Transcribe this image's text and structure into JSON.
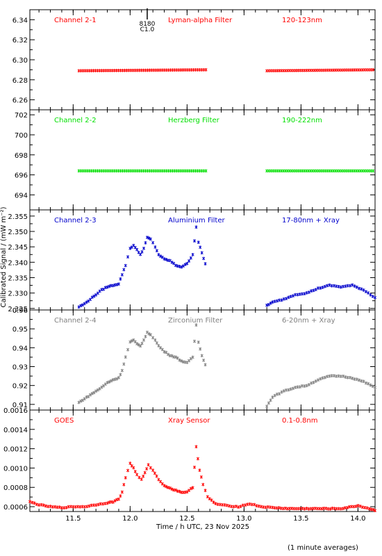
{
  "figure": {
    "ylabel": "Calibrated Signal / (mW m⁻²)",
    "xlabel": "Time / h UTC, 23 Nov 2025",
    "footnote": "(1 minute averages)",
    "marker_top": "8180",
    "marker_bottom": "C1.0",
    "marker_x": 12.15
  },
  "chart_data": [
    {
      "type": "scatter",
      "label_left": "Channel 2-1",
      "label_mid": "Lyman-alpha Filter",
      "label_right": "120-123nm",
      "color": "#ff0000",
      "xlim": [
        11.12,
        14.15
      ],
      "ylim": [
        6.25,
        6.35
      ],
      "yticks": [
        6.26,
        6.28,
        6.3,
        6.32,
        6.34
      ],
      "ytick_labels": [
        "6.26",
        "6.28",
        "6.30",
        "6.32",
        "6.34"
      ],
      "segments": [
        {
          "x": [
            11.55,
            12.68
          ],
          "y": [
            6.289,
            6.29
          ]
        },
        {
          "x": [
            13.2,
            14.15
          ],
          "y": [
            6.289,
            6.29
          ]
        }
      ]
    },
    {
      "type": "scatter",
      "label_left": "Channel 2-2",
      "label_mid": "Herzberg Filter",
      "label_right": "190-222nm",
      "color": "#00e000",
      "xlim": [
        11.12,
        14.15
      ],
      "ylim": [
        692.5,
        702.5
      ],
      "yticks": [
        694,
        696,
        698,
        700,
        702
      ],
      "ytick_labels": [
        "694",
        "696",
        "698",
        "700",
        "702"
      ],
      "segments": [
        {
          "x": [
            11.55,
            12.68
          ],
          "y": [
            696.4,
            696.4
          ]
        },
        {
          "x": [
            13.2,
            14.15
          ],
          "y": [
            696.4,
            696.4
          ]
        }
      ]
    },
    {
      "type": "scatter",
      "label_left": "Channel 2-3",
      "label_mid": "Aluminium Filter",
      "label_right": "17-80nm + Xray",
      "color": "#0000cc",
      "xlim": [
        11.12,
        14.15
      ],
      "ylim": [
        2.3245,
        2.357
      ],
      "yticks": [
        2.325,
        2.33,
        2.335,
        2.34,
        2.345,
        2.35,
        2.355
      ],
      "ytick_labels": [
        "2.325",
        "2.330",
        "2.335",
        "2.340",
        "2.345",
        "2.350",
        "2.355"
      ],
      "points": [
        [
          11.55,
          2.3255
        ],
        [
          11.6,
          2.3265
        ],
        [
          11.65,
          2.328
        ],
        [
          11.7,
          2.3295
        ],
        [
          11.75,
          2.331
        ],
        [
          11.8,
          2.332
        ],
        [
          11.85,
          2.3325
        ],
        [
          11.9,
          2.333
        ],
        [
          11.93,
          2.336
        ],
        [
          11.96,
          2.339
        ],
        [
          12.0,
          2.3445
        ],
        [
          12.03,
          2.3455
        ],
        [
          12.06,
          2.344
        ],
        [
          12.09,
          2.3425
        ],
        [
          12.12,
          2.3445
        ],
        [
          12.15,
          2.348
        ],
        [
          12.18,
          2.3475
        ],
        [
          12.22,
          2.345
        ],
        [
          12.25,
          2.3425
        ],
        [
          12.3,
          2.341
        ],
        [
          12.35,
          2.3405
        ],
        [
          12.4,
          2.339
        ],
        [
          12.45,
          2.3385
        ],
        [
          12.5,
          2.3395
        ],
        [
          12.55,
          2.3425
        ],
        [
          12.58,
          2.3515
        ],
        [
          12.6,
          2.3465
        ],
        [
          12.63,
          2.343
        ],
        [
          12.66,
          2.3395
        ],
        [
          13.2,
          2.326
        ],
        [
          13.25,
          2.327
        ],
        [
          13.35,
          2.328
        ],
        [
          13.45,
          2.3295
        ],
        [
          13.55,
          2.33
        ],
        [
          13.65,
          2.3315
        ],
        [
          13.75,
          2.3325
        ],
        [
          13.85,
          2.332
        ],
        [
          13.95,
          2.3325
        ],
        [
          14.05,
          2.331
        ],
        [
          14.15,
          2.3285
        ]
      ]
    },
    {
      "type": "scatter",
      "label_left": "Channel 2-4",
      "label_mid": "Zirconium Filter",
      "label_right": "6-20nm + Xray",
      "color": "#808080",
      "xlim": [
        11.12,
        14.15
      ],
      "ylim": [
        0.907,
        0.96
      ],
      "yticks": [
        0.91,
        0.92,
        0.93,
        0.94,
        0.95,
        0.96
      ],
      "ytick_labels": [
        "0.91",
        "0.92",
        "0.93",
        "0.94",
        "0.95",
        "0.96"
      ],
      "points": [
        [
          11.55,
          0.911
        ],
        [
          11.6,
          0.913
        ],
        [
          11.65,
          0.915
        ],
        [
          11.7,
          0.917
        ],
        [
          11.75,
          0.919
        ],
        [
          11.8,
          0.9215
        ],
        [
          11.85,
          0.923
        ],
        [
          11.9,
          0.924
        ],
        [
          11.93,
          0.928
        ],
        [
          11.96,
          0.935
        ],
        [
          12.0,
          0.943
        ],
        [
          12.03,
          0.944
        ],
        [
          12.06,
          0.942
        ],
        [
          12.09,
          0.941
        ],
        [
          12.12,
          0.944
        ],
        [
          12.15,
          0.948
        ],
        [
          12.18,
          0.947
        ],
        [
          12.22,
          0.944
        ],
        [
          12.25,
          0.941
        ],
        [
          12.3,
          0.938
        ],
        [
          12.35,
          0.936
        ],
        [
          12.4,
          0.935
        ],
        [
          12.45,
          0.933
        ],
        [
          12.5,
          0.932
        ],
        [
          12.55,
          0.935
        ],
        [
          12.58,
          0.952
        ],
        [
          12.6,
          0.943
        ],
        [
          12.63,
          0.936
        ],
        [
          12.66,
          0.931
        ],
        [
          13.2,
          0.909
        ],
        [
          13.25,
          0.914
        ],
        [
          13.35,
          0.917
        ],
        [
          13.45,
          0.919
        ],
        [
          13.55,
          0.92
        ],
        [
          13.65,
          0.923
        ],
        [
          13.75,
          0.925
        ],
        [
          13.85,
          0.925
        ],
        [
          13.95,
          0.924
        ],
        [
          14.05,
          0.922
        ],
        [
          14.15,
          0.919
        ]
      ]
    },
    {
      "type": "scatter",
      "label_left": "GOES",
      "label_mid": "Xray Sensor",
      "label_right": "0.1-0.8nm",
      "color": "#ff0000",
      "xlim": [
        11.12,
        14.15
      ],
      "ylim": [
        0.00055,
        0.0016
      ],
      "yticks": [
        0.0006,
        0.0008,
        0.001,
        0.0012,
        0.0014,
        0.0016
      ],
      "ytick_labels": [
        "0.0006",
        "0.0008",
        "0.0010",
        "0.0012",
        "0.0014",
        "0.0016"
      ],
      "points": [
        [
          11.12,
          0.00065
        ],
        [
          11.2,
          0.00062
        ],
        [
          11.3,
          0.0006
        ],
        [
          11.4,
          0.00059
        ],
        [
          11.5,
          0.0006
        ],
        [
          11.6,
          0.0006
        ],
        [
          11.7,
          0.00062
        ],
        [
          11.8,
          0.00064
        ],
        [
          11.85,
          0.00065
        ],
        [
          11.9,
          0.00068
        ],
        [
          11.93,
          0.00075
        ],
        [
          11.96,
          0.0009
        ],
        [
          12.0,
          0.00105
        ],
        [
          12.03,
          0.001
        ],
        [
          12.06,
          0.00093
        ],
        [
          12.1,
          0.00088
        ],
        [
          12.13,
          0.00095
        ],
        [
          12.16,
          0.00103
        ],
        [
          12.2,
          0.00098
        ],
        [
          12.25,
          0.00088
        ],
        [
          12.3,
          0.00082
        ],
        [
          12.35,
          0.00079
        ],
        [
          12.4,
          0.00077
        ],
        [
          12.45,
          0.00075
        ],
        [
          12.5,
          0.00075
        ],
        [
          12.55,
          0.0008
        ],
        [
          12.58,
          0.00122
        ],
        [
          12.61,
          0.00098
        ],
        [
          12.64,
          0.00083
        ],
        [
          12.68,
          0.0007
        ],
        [
          12.75,
          0.00063
        ],
        [
          12.85,
          0.00061
        ],
        [
          12.95,
          0.0006
        ],
        [
          13.05,
          0.00063
        ],
        [
          13.15,
          0.0006
        ],
        [
          13.25,
          0.00059
        ],
        [
          13.4,
          0.00058
        ],
        [
          13.55,
          0.00058
        ],
        [
          13.7,
          0.00058
        ],
        [
          13.85,
          0.00058
        ],
        [
          14.0,
          0.00061
        ],
        [
          14.1,
          0.00058
        ],
        [
          14.15,
          0.00056
        ]
      ]
    }
  ],
  "shared_x": {
    "ticks": [
      11.5,
      12.0,
      12.5,
      13.0,
      13.5,
      14.0
    ],
    "tick_labels": [
      "11.5",
      "12.0",
      "12.5",
      "13.0",
      "13.5",
      "14.0"
    ],
    "minor_step": 0.1
  }
}
